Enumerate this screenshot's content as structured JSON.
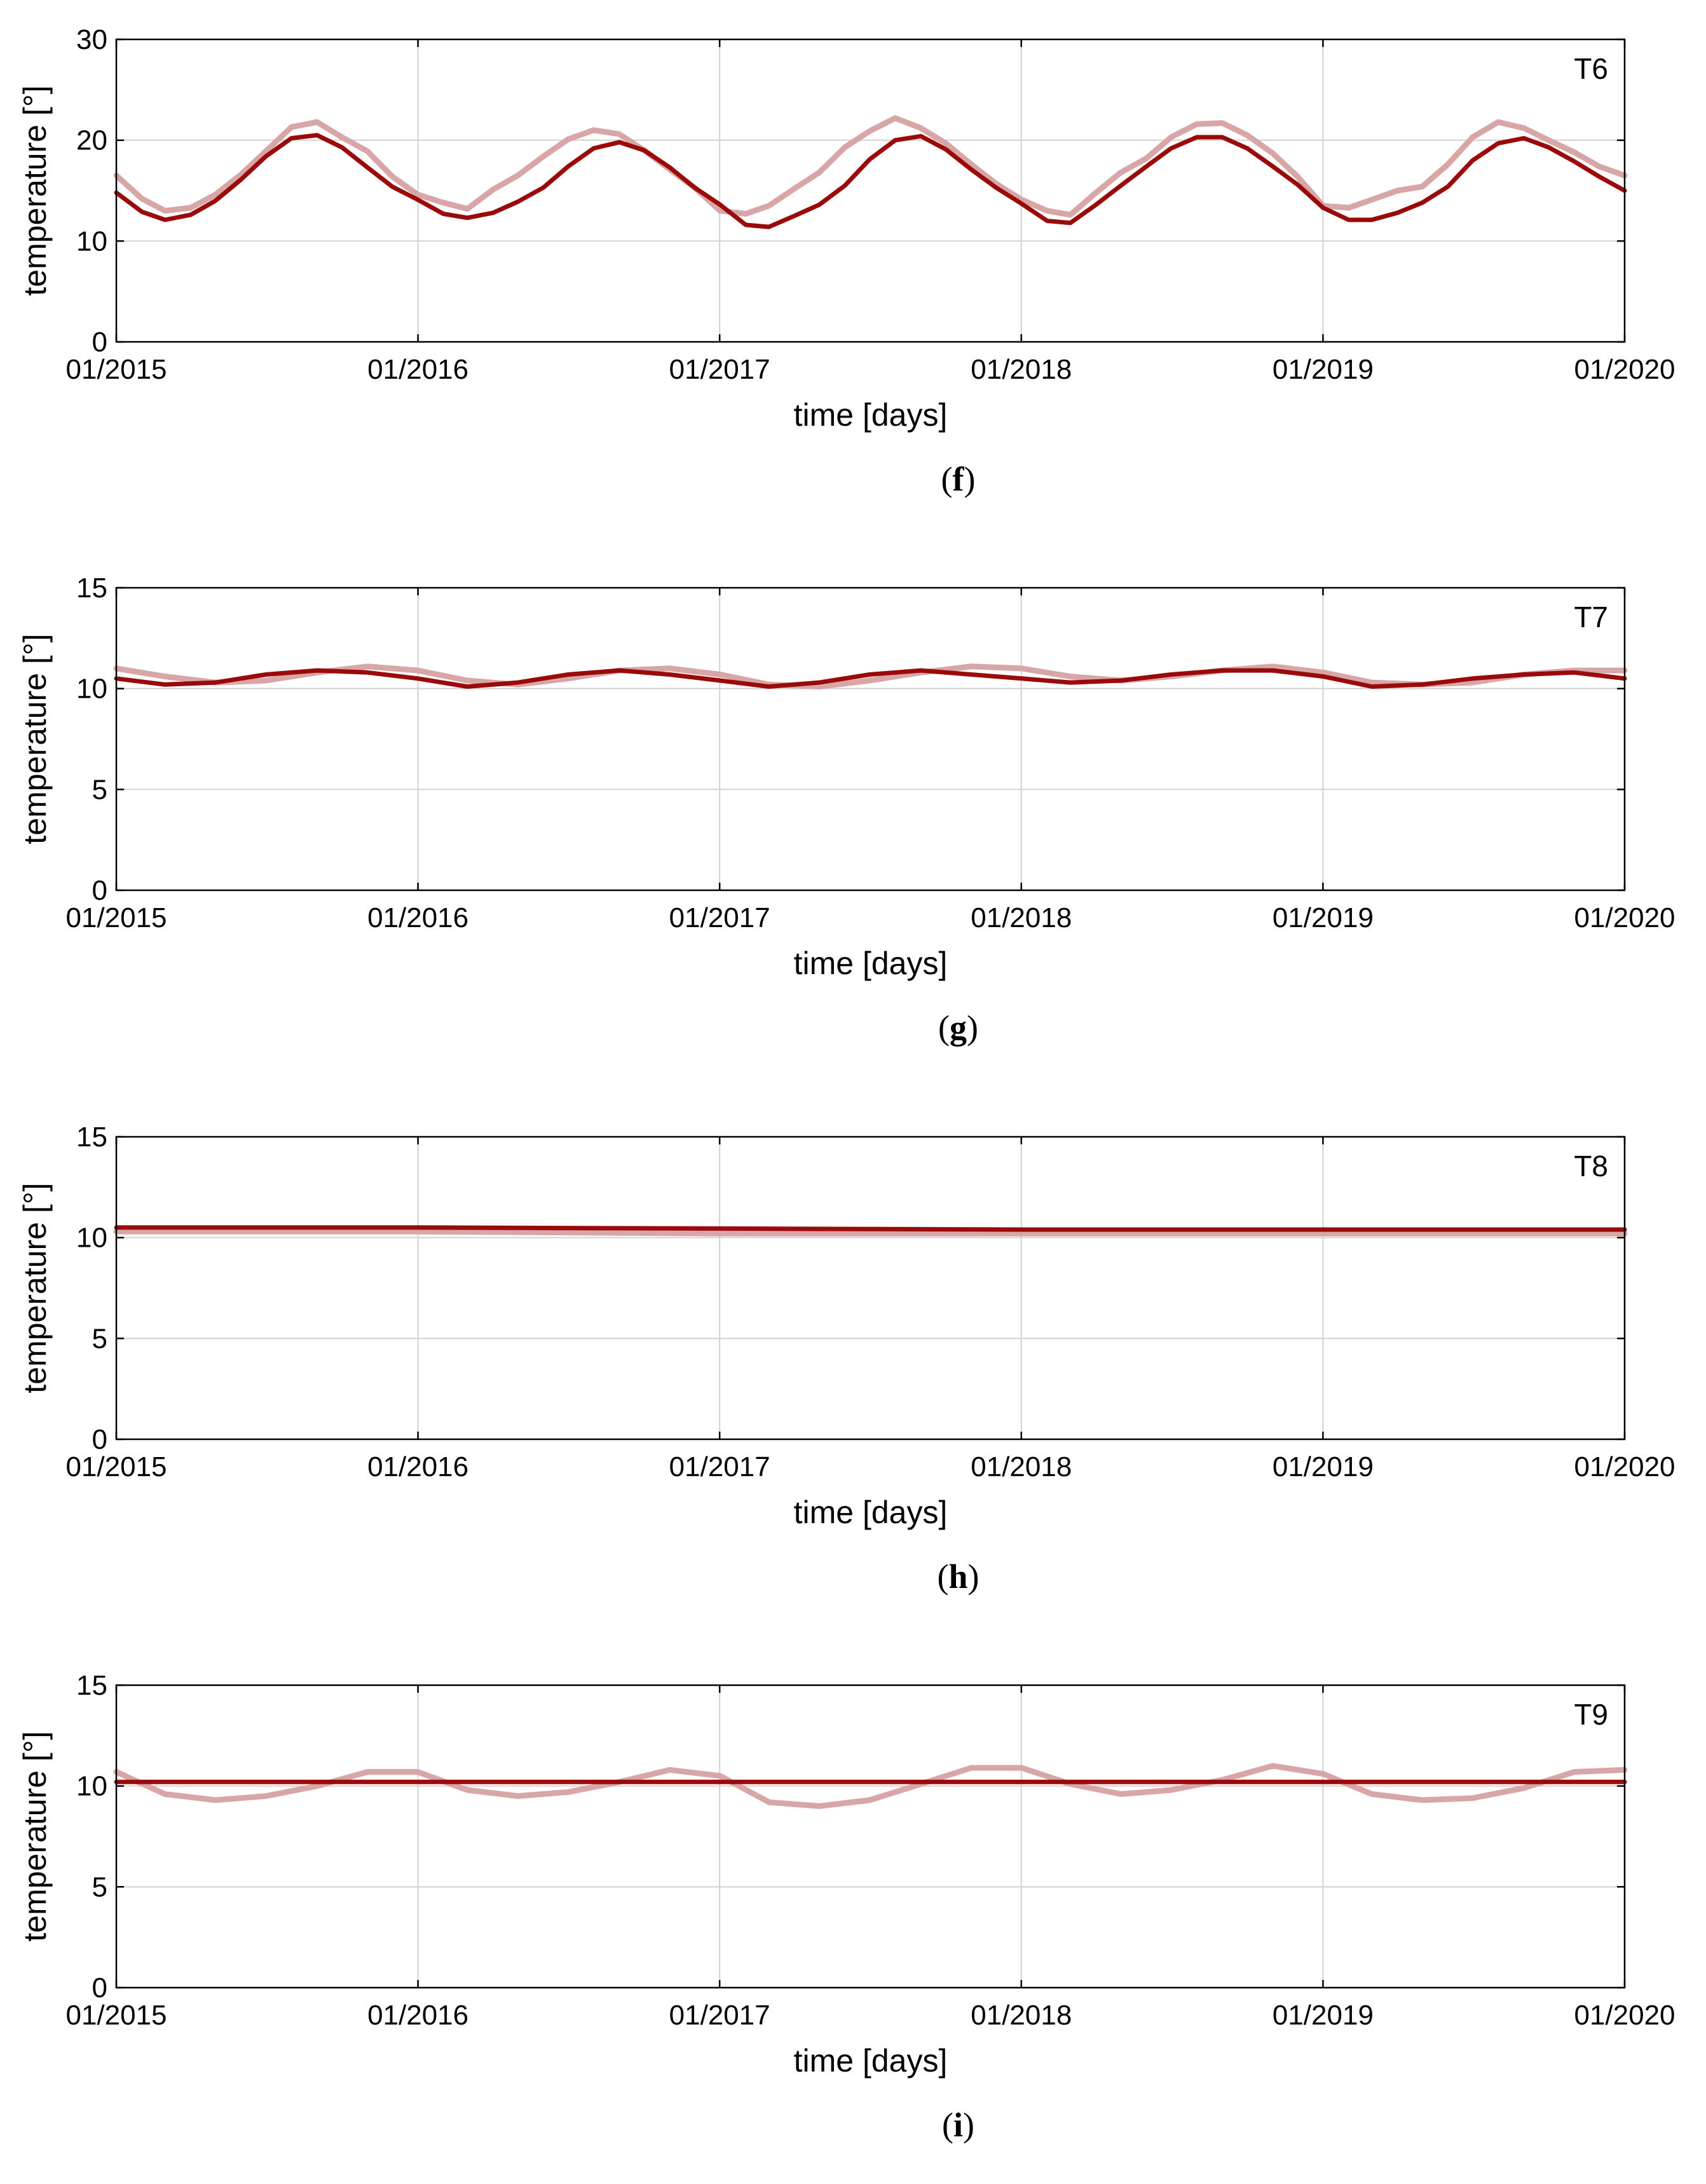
{
  "colors": {
    "model": "#9b0a0a",
    "measured": "#d9a6a8",
    "grid": "#d2d2d2",
    "axis": "#000000"
  },
  "chart_data": [
    {
      "type": "line",
      "panel_tag": "T6",
      "caption_letter": "f",
      "xlabel": "time [days]",
      "ylabel": "temperature [°]",
      "x_ticks": [
        "01/2015",
        "01/2016",
        "01/2017",
        "01/2018",
        "01/2019",
        "01/2020"
      ],
      "xlim": [
        "2015-01-01",
        "2020-01-01"
      ],
      "ylim": [
        0,
        30
      ],
      "y_ticks": [
        0,
        10,
        20,
        30
      ],
      "grid": true,
      "series": [
        {
          "role": "measured",
          "x": [
            "2015-01-01",
            "2015-02-01",
            "2015-03-01",
            "2015-04-01",
            "2015-05-01",
            "2015-06-01",
            "2015-07-01",
            "2015-08-01",
            "2015-09-01",
            "2015-10-01",
            "2015-11-01",
            "2015-12-01",
            "2016-01-01",
            "2016-02-01",
            "2016-03-01",
            "2016-04-01",
            "2016-05-01",
            "2016-06-01",
            "2016-07-01",
            "2016-08-01",
            "2016-09-01",
            "2016-10-01",
            "2016-11-01",
            "2016-12-01",
            "2017-01-01",
            "2017-02-01",
            "2017-03-01",
            "2017-04-01",
            "2017-05-01",
            "2017-06-01",
            "2017-07-01",
            "2017-08-01",
            "2017-09-01",
            "2017-10-01",
            "2017-11-01",
            "2017-12-01",
            "2018-01-01",
            "2018-02-01",
            "2018-03-01",
            "2018-04-01",
            "2018-05-01",
            "2018-06-01",
            "2018-07-01",
            "2018-08-01",
            "2018-09-01",
            "2018-10-01",
            "2018-11-01",
            "2018-12-01",
            "2019-01-01",
            "2019-02-01",
            "2019-03-01",
            "2019-04-01",
            "2019-05-01",
            "2019-06-01",
            "2019-07-01",
            "2019-08-01",
            "2019-09-01",
            "2019-10-01",
            "2019-11-01",
            "2019-12-01",
            "2020-01-01"
          ],
          "y": [
            16.5,
            14.2,
            13.0,
            13.3,
            14.6,
            16.6,
            18.9,
            21.3,
            21.8,
            20.3,
            18.9,
            16.4,
            14.6,
            13.8,
            13.2,
            15.1,
            16.5,
            18.4,
            20.1,
            21.0,
            20.6,
            19.0,
            17.1,
            15.3,
            13.0,
            12.7,
            13.5,
            15.2,
            16.8,
            19.3,
            20.9,
            22.2,
            21.2,
            19.7,
            17.6,
            15.7,
            14.1,
            13.0,
            12.6,
            14.8,
            16.8,
            18.2,
            20.3,
            21.6,
            21.7,
            20.5,
            18.7,
            16.4,
            13.5,
            13.3,
            14.1,
            15.0,
            15.4,
            17.6,
            20.3,
            21.8,
            21.2,
            20.0,
            18.8,
            17.4,
            16.5
          ]
        },
        {
          "role": "model",
          "x": [
            "2015-01-01",
            "2015-02-01",
            "2015-03-01",
            "2015-04-01",
            "2015-05-01",
            "2015-06-01",
            "2015-07-01",
            "2015-08-01",
            "2015-09-01",
            "2015-10-01",
            "2015-11-01",
            "2015-12-01",
            "2016-01-01",
            "2016-02-01",
            "2016-03-01",
            "2016-04-01",
            "2016-05-01",
            "2016-06-01",
            "2016-07-01",
            "2016-08-01",
            "2016-09-01",
            "2016-10-01",
            "2016-11-01",
            "2016-12-01",
            "2017-01-01",
            "2017-02-01",
            "2017-03-01",
            "2017-04-01",
            "2017-05-01",
            "2017-06-01",
            "2017-07-01",
            "2017-08-01",
            "2017-09-01",
            "2017-10-01",
            "2017-11-01",
            "2017-12-01",
            "2018-01-01",
            "2018-02-01",
            "2018-03-01",
            "2018-04-01",
            "2018-05-01",
            "2018-06-01",
            "2018-07-01",
            "2018-08-01",
            "2018-09-01",
            "2018-10-01",
            "2018-11-01",
            "2018-12-01",
            "2019-01-01",
            "2019-02-01",
            "2019-03-01",
            "2019-04-01",
            "2019-05-01",
            "2019-06-01",
            "2019-07-01",
            "2019-08-01",
            "2019-09-01",
            "2019-10-01",
            "2019-11-01",
            "2019-12-01",
            "2020-01-01"
          ],
          "y": [
            14.8,
            12.9,
            12.1,
            12.6,
            14.0,
            16.1,
            18.4,
            20.2,
            20.5,
            19.3,
            17.3,
            15.4,
            14.1,
            12.7,
            12.3,
            12.8,
            13.9,
            15.3,
            17.4,
            19.2,
            19.8,
            19.0,
            17.3,
            15.3,
            13.6,
            11.6,
            11.4,
            12.5,
            13.6,
            15.5,
            18.1,
            20.0,
            20.4,
            19.1,
            17.1,
            15.3,
            13.7,
            12.0,
            11.8,
            13.6,
            15.5,
            17.4,
            19.2,
            20.3,
            20.3,
            19.2,
            17.4,
            15.6,
            13.3,
            12.1,
            12.1,
            12.8,
            13.8,
            15.4,
            18.0,
            19.7,
            20.2,
            19.3,
            17.9,
            16.4,
            15.0
          ]
        }
      ]
    },
    {
      "type": "line",
      "panel_tag": "T7",
      "caption_letter": "g",
      "xlabel": "time [days]",
      "ylabel": "temperature [°]",
      "x_ticks": [
        "01/2015",
        "01/2016",
        "01/2017",
        "01/2018",
        "01/2019",
        "01/2020"
      ],
      "xlim": [
        "2015-01-01",
        "2020-01-01"
      ],
      "ylim": [
        0,
        15
      ],
      "y_ticks": [
        0,
        5,
        10,
        15
      ],
      "grid": true,
      "series": [
        {
          "role": "measured",
          "x": [
            "2015-01-01",
            "2015-03-01",
            "2015-05-01",
            "2015-07-01",
            "2015-09-01",
            "2015-11-01",
            "2016-01-01",
            "2016-03-01",
            "2016-05-01",
            "2016-07-01",
            "2016-09-01",
            "2016-11-01",
            "2017-01-01",
            "2017-03-01",
            "2017-05-01",
            "2017-07-01",
            "2017-09-01",
            "2017-11-01",
            "2018-01-01",
            "2018-03-01",
            "2018-05-01",
            "2018-07-01",
            "2018-09-01",
            "2018-11-01",
            "2019-01-01",
            "2019-03-01",
            "2019-05-01",
            "2019-07-01",
            "2019-09-01",
            "2019-11-01",
            "2020-01-01"
          ],
          "y": [
            11.0,
            10.6,
            10.3,
            10.4,
            10.8,
            11.1,
            10.9,
            10.4,
            10.2,
            10.5,
            10.9,
            11.0,
            10.7,
            10.2,
            10.1,
            10.4,
            10.8,
            11.1,
            11.0,
            10.6,
            10.4,
            10.6,
            10.9,
            11.1,
            10.8,
            10.3,
            10.2,
            10.3,
            10.7,
            10.9,
            10.9
          ]
        },
        {
          "role": "model",
          "x": [
            "2015-01-01",
            "2015-03-01",
            "2015-05-01",
            "2015-07-01",
            "2015-09-01",
            "2015-11-01",
            "2016-01-01",
            "2016-03-01",
            "2016-05-01",
            "2016-07-01",
            "2016-09-01",
            "2016-11-01",
            "2017-01-01",
            "2017-03-01",
            "2017-05-01",
            "2017-07-01",
            "2017-09-01",
            "2017-11-01",
            "2018-01-01",
            "2018-03-01",
            "2018-05-01",
            "2018-07-01",
            "2018-09-01",
            "2018-11-01",
            "2019-01-01",
            "2019-03-01",
            "2019-05-01",
            "2019-07-01",
            "2019-09-01",
            "2019-11-01",
            "2020-01-01"
          ],
          "y": [
            10.5,
            10.2,
            10.3,
            10.7,
            10.9,
            10.8,
            10.5,
            10.1,
            10.3,
            10.7,
            10.9,
            10.7,
            10.4,
            10.1,
            10.3,
            10.7,
            10.9,
            10.7,
            10.5,
            10.3,
            10.4,
            10.7,
            10.9,
            10.9,
            10.6,
            10.1,
            10.2,
            10.5,
            10.7,
            10.8,
            10.5
          ]
        }
      ]
    },
    {
      "type": "line",
      "panel_tag": "T8",
      "caption_letter": "h",
      "xlabel": "time [days]",
      "ylabel": "temperature [°]",
      "x_ticks": [
        "01/2015",
        "01/2016",
        "01/2017",
        "01/2018",
        "01/2019",
        "01/2020"
      ],
      "xlim": [
        "2015-01-01",
        "2020-01-01"
      ],
      "ylim": [
        0,
        15
      ],
      "y_ticks": [
        0,
        5,
        10,
        15
      ],
      "grid": true,
      "series": [
        {
          "role": "measured",
          "x": [
            "2015-01-01",
            "2016-01-01",
            "2017-01-01",
            "2018-01-01",
            "2019-01-01",
            "2020-01-01"
          ],
          "y": [
            10.3,
            10.3,
            10.2,
            10.2,
            10.2,
            10.2
          ]
        },
        {
          "role": "model",
          "x": [
            "2015-01-01",
            "2016-01-01",
            "2017-01-01",
            "2018-01-01",
            "2019-01-01",
            "2020-01-01"
          ],
          "y": [
            10.5,
            10.5,
            10.45,
            10.4,
            10.4,
            10.4
          ]
        }
      ]
    },
    {
      "type": "line",
      "panel_tag": "T9",
      "caption_letter": "i",
      "xlabel": "time [days]",
      "ylabel": "temperature [°]",
      "x_ticks": [
        "01/2015",
        "01/2016",
        "01/2017",
        "01/2018",
        "01/2019",
        "01/2020"
      ],
      "xlim": [
        "2015-01-01",
        "2020-01-01"
      ],
      "ylim": [
        0,
        15
      ],
      "y_ticks": [
        0,
        5,
        10,
        15
      ],
      "grid": true,
      "series": [
        {
          "role": "measured",
          "x": [
            "2015-01-01",
            "2015-03-01",
            "2015-05-01",
            "2015-07-01",
            "2015-09-01",
            "2015-11-01",
            "2016-01-01",
            "2016-03-01",
            "2016-05-01",
            "2016-07-01",
            "2016-09-01",
            "2016-11-01",
            "2017-01-01",
            "2017-03-01",
            "2017-05-01",
            "2017-07-01",
            "2017-09-01",
            "2017-11-01",
            "2018-01-01",
            "2018-03-01",
            "2018-05-01",
            "2018-07-01",
            "2018-09-01",
            "2018-11-01",
            "2019-01-01",
            "2019-03-01",
            "2019-05-01",
            "2019-07-01",
            "2019-09-01",
            "2019-11-01",
            "2020-01-01"
          ],
          "y": [
            10.7,
            9.6,
            9.3,
            9.5,
            10.0,
            10.7,
            10.7,
            9.8,
            9.5,
            9.7,
            10.2,
            10.8,
            10.5,
            9.2,
            9.0,
            9.3,
            10.1,
            10.9,
            10.9,
            10.1,
            9.6,
            9.8,
            10.3,
            11.0,
            10.6,
            9.6,
            9.3,
            9.4,
            9.9,
            10.7,
            10.8
          ]
        },
        {
          "role": "model",
          "x": [
            "2015-01-01",
            "2016-01-01",
            "2017-01-01",
            "2018-01-01",
            "2019-01-01",
            "2020-01-01"
          ],
          "y": [
            10.2,
            10.2,
            10.2,
            10.2,
            10.2,
            10.2
          ]
        }
      ]
    }
  ]
}
